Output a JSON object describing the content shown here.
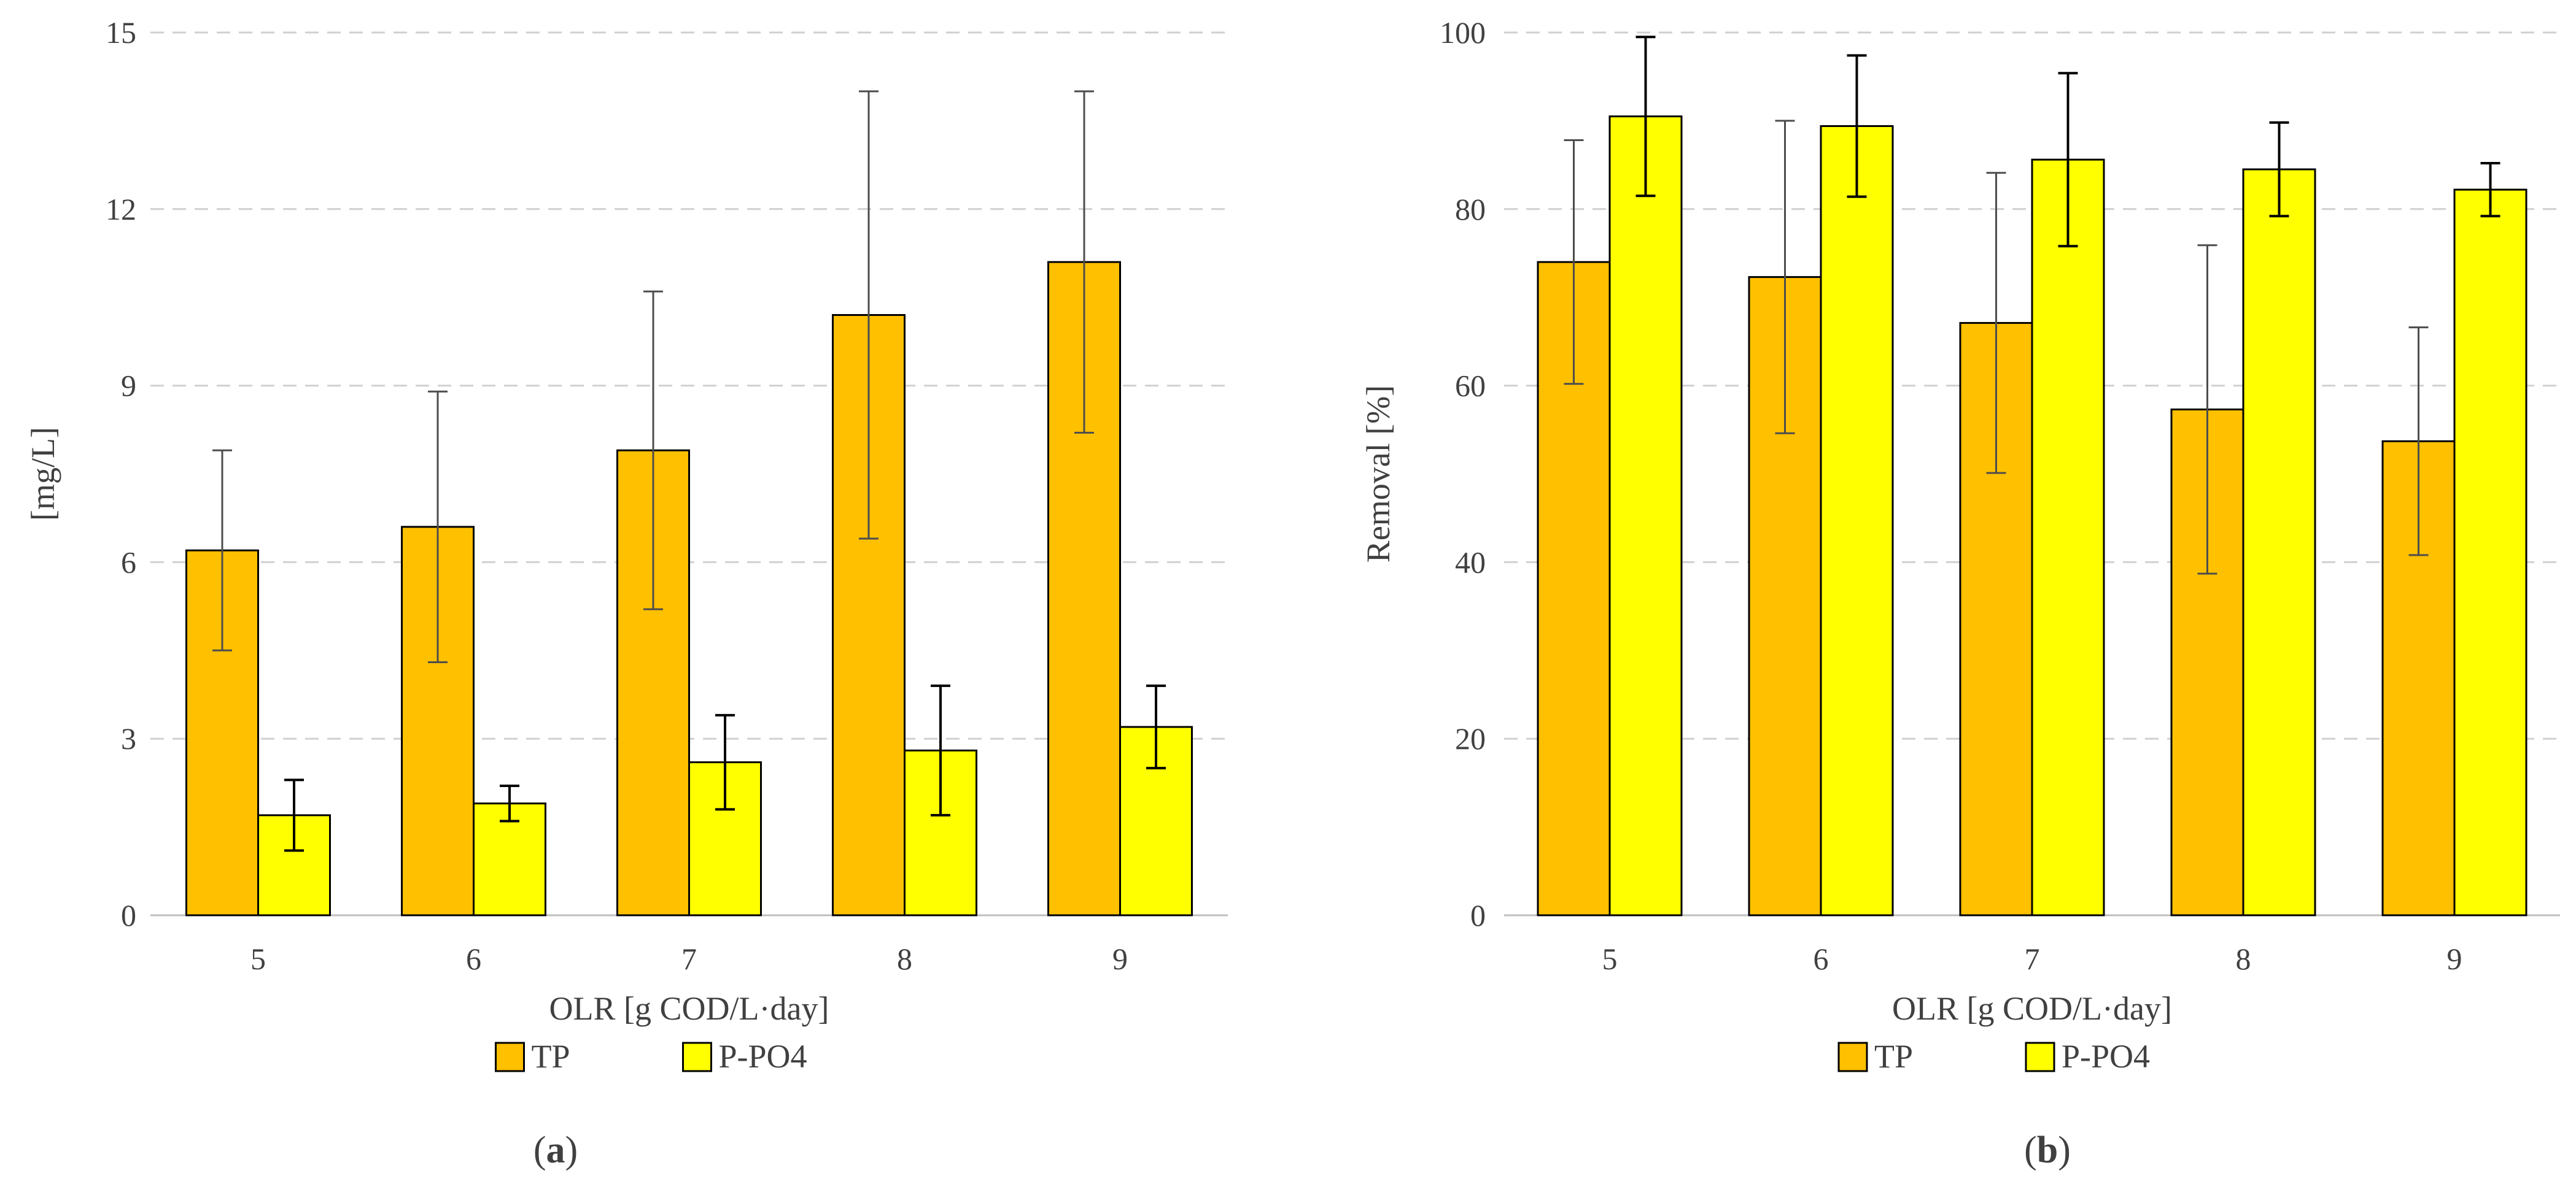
{
  "chart_data": [
    {
      "type": "bar",
      "panel_label": "a",
      "title": "",
      "xlabel": "OLR [g COD/L·day]",
      "ylabel": "[mg/L]",
      "ylim": [
        0,
        15
      ],
      "yticks": [
        "0",
        "3",
        "6",
        "9",
        "12",
        "15"
      ],
      "categories": [
        "5",
        "6",
        "7",
        "8",
        "9"
      ],
      "grid": true,
      "legend_position": "bottom-left",
      "series": [
        {
          "name": "TP",
          "color": "#ffc000",
          "values": [
            6.2,
            6.6,
            7.9,
            10.2,
            11.1
          ],
          "errors": [
            1.7,
            2.3,
            2.7,
            3.8,
            2.9
          ]
        },
        {
          "name": "P-PO4",
          "color": "#ffff00",
          "values": [
            1.7,
            1.9,
            2.6,
            2.8,
            3.2
          ],
          "errors": [
            0.6,
            0.3,
            0.8,
            1.1,
            0.7
          ]
        }
      ]
    },
    {
      "type": "bar",
      "panel_label": "b",
      "title": "",
      "xlabel": "OLR [g COD/L·day]",
      "ylabel": "Removal [%]",
      "ylim": [
        0,
        100
      ],
      "yticks": [
        "0",
        "20",
        "40",
        "60",
        "80",
        "100"
      ],
      "categories": [
        "5",
        "6",
        "7",
        "8",
        "9"
      ],
      "grid": true,
      "legend_position": "bottom-left",
      "series": [
        {
          "name": "TP",
          "color": "#ffc000",
          "values": [
            74.0,
            72.3,
            67.1,
            57.3,
            53.7
          ],
          "errors": [
            13.8,
            17.7,
            17.0,
            18.6,
            12.9
          ]
        },
        {
          "name": "P-PO4",
          "color": "#ffff00",
          "values": [
            90.5,
            89.4,
            85.6,
            84.5,
            82.2
          ],
          "errors": [
            9.0,
            8.0,
            9.8,
            5.3,
            3.0
          ]
        }
      ]
    }
  ]
}
